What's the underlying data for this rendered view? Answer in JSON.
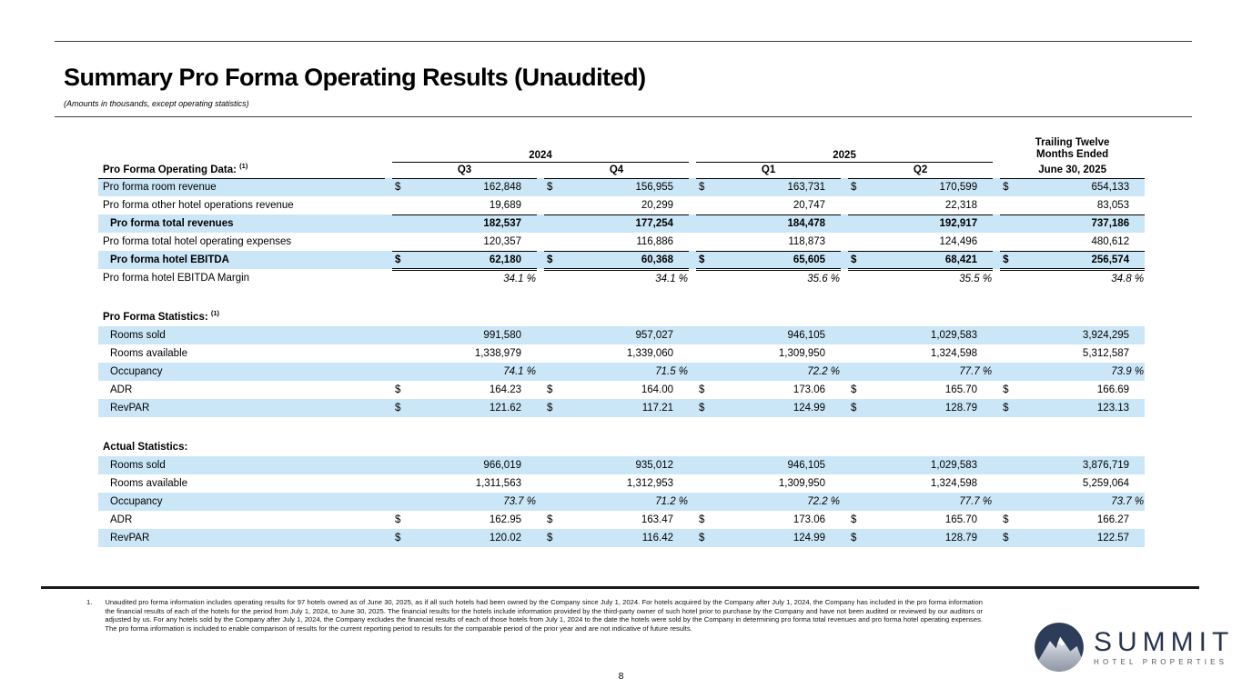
{
  "header": {
    "title": "Summary Pro Forma Operating Results (Unaudited)",
    "subtitle": "(Amounts in thousands, except operating statistics)"
  },
  "colors": {
    "row_highlight": "#cbe7f7",
    "logo_navy": "#2d3c59"
  },
  "table": {
    "row_header": {
      "label": "Pro Forma Operating Data:",
      "sup": "(1)"
    },
    "year_groups": [
      {
        "year": "2024",
        "quarters": [
          "Q3",
          "Q4"
        ]
      },
      {
        "year": "2025",
        "quarters": [
          "Q1",
          "Q2"
        ]
      }
    ],
    "ttm_header": {
      "lines": [
        "Trailing Twelve",
        "Months Ended"
      ],
      "date": "June 30, 2025"
    },
    "dollar_sign": "$",
    "percent_suffix": " %",
    "sections": [
      {
        "title": "",
        "sup": "",
        "rows": [
          {
            "label": "Pro forma room revenue",
            "hl": true,
            "dollar": true,
            "values": [
              "162,848",
              "156,955",
              "163,731",
              "170,599",
              "654,133"
            ]
          },
          {
            "label": "Pro forma other hotel operations revenue",
            "values": [
              "19,689",
              "20,299",
              "20,747",
              "22,318",
              "83,053"
            ]
          },
          {
            "label": "Pro forma total revenues",
            "hl": true,
            "bold": true,
            "ind": true,
            "top": true,
            "values": [
              "182,537",
              "177,254",
              "184,478",
              "192,917",
              "737,186"
            ]
          },
          {
            "label": "Pro forma total hotel operating expenses",
            "values": [
              "120,357",
              "116,886",
              "118,873",
              "124,496",
              "480,612"
            ]
          },
          {
            "label": "Pro forma hotel EBITDA",
            "hl": true,
            "bold": true,
            "ind": true,
            "dollar": true,
            "top": true,
            "dbl": true,
            "values": [
              "62,180",
              "60,368",
              "65,605",
              "68,421",
              "256,574"
            ]
          },
          {
            "label": "Pro forma hotel EBITDA Margin",
            "italic": true,
            "pct": true,
            "values": [
              "34.1",
              "34.1",
              "35.6",
              "35.5",
              "34.8"
            ]
          }
        ]
      },
      {
        "title": "Pro Forma Statistics:",
        "sup": "(1)",
        "rows": [
          {
            "label": "Rooms sold",
            "hl": true,
            "ind": true,
            "values": [
              "991,580",
              "957,027",
              "946,105",
              "1,029,583",
              "3,924,295"
            ]
          },
          {
            "label": "Rooms available",
            "ind": true,
            "values": [
              "1,338,979",
              "1,339,060",
              "1,309,950",
              "1,324,598",
              "5,312,587"
            ]
          },
          {
            "label": "Occupancy",
            "hl": true,
            "ind": true,
            "italic": true,
            "pct": true,
            "values": [
              "74.1",
              "71.5",
              "72.2",
              "77.7",
              "73.9"
            ]
          },
          {
            "label": "ADR",
            "ind": true,
            "dollar": true,
            "values": [
              "164.23",
              "164.00",
              "173.06",
              "165.70",
              "166.69"
            ]
          },
          {
            "label": "RevPAR",
            "hl": true,
            "ind": true,
            "dollar": true,
            "values": [
              "121.62",
              "117.21",
              "124.99",
              "128.79",
              "123.13"
            ]
          }
        ]
      },
      {
        "title": "Actual Statistics:",
        "sup": "",
        "rows": [
          {
            "label": "Rooms sold",
            "hl": true,
            "ind": true,
            "values": [
              "966,019",
              "935,012",
              "946,105",
              "1,029,583",
              "3,876,719"
            ]
          },
          {
            "label": "Rooms available",
            "ind": true,
            "values": [
              "1,311,563",
              "1,312,953",
              "1,309,950",
              "1,324,598",
              "5,259,064"
            ]
          },
          {
            "label": "Occupancy",
            "hl": true,
            "ind": true,
            "italic": true,
            "pct": true,
            "values": [
              "73.7",
              "71.2",
              "72.2",
              "77.7",
              "73.7"
            ]
          },
          {
            "label": "ADR",
            "ind": true,
            "dollar": true,
            "values": [
              "162.95",
              "163.47",
              "173.06",
              "165.70",
              "166.27"
            ]
          },
          {
            "label": "RevPAR",
            "hl": true,
            "ind": true,
            "dollar": true,
            "values": [
              "120.02",
              "116.42",
              "124.99",
              "128.79",
              "122.57"
            ]
          }
        ]
      }
    ]
  },
  "footnote": {
    "number": "1.",
    "text": "Unaudited pro forma information includes operating results for 97 hotels owned as of June 30, 2025, as if all such hotels had been owned by the Company since July 1, 2024. For hotels acquired by the Company after July 1, 2024, the Company has included in the pro forma information the financial results of each of the hotels for the period from July 1, 2024, to June 30, 2025. The financial results for the hotels include information provided by the third-party owner of such hotel prior to purchase by the Company and have not been audited or reviewed by our auditors or adjusted by us. For any hotels sold by the Company after July 1, 2024, the Company excludes the financial results of each of those hotels from July 1, 2024 to the date the hotels were sold by the Company in determining pro forma total revenues and pro forma hotel operating expenses. The pro forma information is included to enable comparison of results for the current reporting period to results for the comparable period of the prior year and are not indicative of future results."
  },
  "page_number": "8",
  "logo": {
    "name": "SUMMIT",
    "tagline": "HOTEL PROPERTIES"
  }
}
